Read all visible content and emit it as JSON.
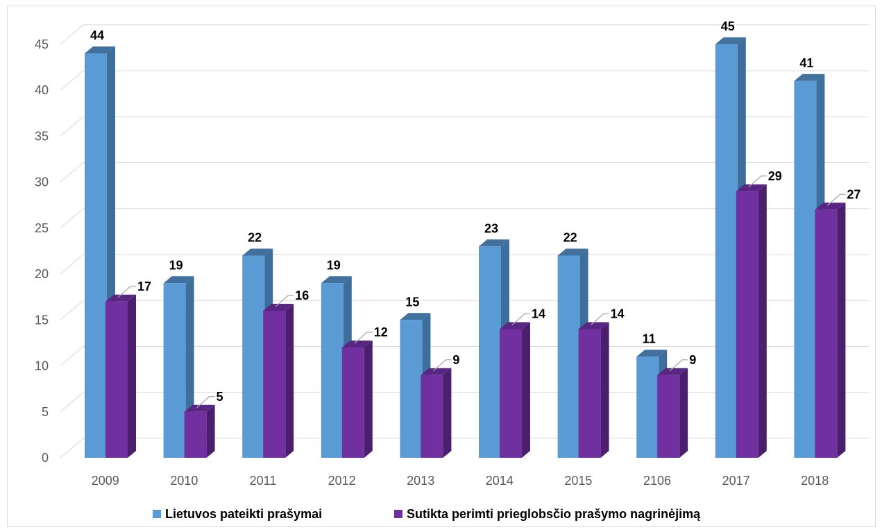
{
  "colors": {
    "series_1": "#5b9bd5",
    "series_1_side": "#3e6f9c",
    "series_1_top": "#41719c",
    "series_2": "#7030a0",
    "series_2_side": "#4b1f6d",
    "series_2_top": "#5a2683",
    "grid": "#d9d9d9",
    "leader": "#a6a6a6"
  },
  "chart_data": {
    "type": "bar",
    "style": "3d-clustered-column",
    "categories": [
      "2009",
      "2010",
      "2011",
      "2012",
      "2013",
      "2014",
      "2015",
      "2106",
      "2017",
      "2018"
    ],
    "series": [
      {
        "name": "Lietuvos pateikti prašymai",
        "values": [
          44,
          19,
          22,
          19,
          15,
          23,
          22,
          11,
          45,
          41
        ]
      },
      {
        "name": "Sutikta perimti prieglobsčio prašymo nagrinėjimą",
        "values": [
          17,
          5,
          16,
          12,
          9,
          14,
          14,
          9,
          29,
          27
        ]
      }
    ],
    "yticks": [
      "0",
      "5",
      "10",
      "15",
      "20",
      "25",
      "30",
      "35",
      "40",
      "45"
    ],
    "ylim": [
      0,
      45
    ],
    "grid": true,
    "data_labels": true,
    "legend_position": "bottom"
  }
}
